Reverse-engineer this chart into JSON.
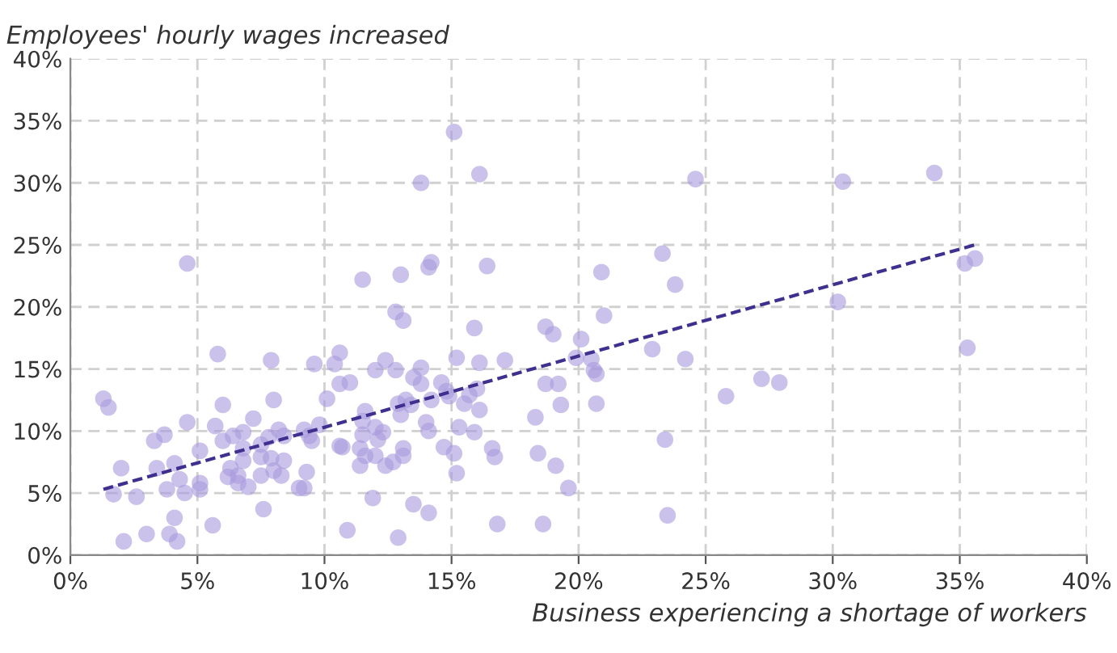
{
  "chart_data": {
    "type": "scatter",
    "xlabel": "Business experiencing a shortage of workers",
    "ylabel": "Employees' hourly wages increased",
    "xlim": [
      0,
      40
    ],
    "ylim": [
      0,
      40
    ],
    "xticks": [
      {
        "value": 0,
        "label": "0%"
      },
      {
        "value": 5,
        "label": "5%"
      },
      {
        "value": 10,
        "label": "10%"
      },
      {
        "value": 15,
        "label": "15%"
      },
      {
        "value": 20,
        "label": "20%"
      },
      {
        "value": 25,
        "label": "25%"
      },
      {
        "value": 30,
        "label": "30%"
      },
      {
        "value": 35,
        "label": "35%"
      },
      {
        "value": 40,
        "label": "40%"
      }
    ],
    "yticks": [
      {
        "value": 0,
        "label": "0%"
      },
      {
        "value": 5,
        "label": "5%"
      },
      {
        "value": 10,
        "label": "10%"
      },
      {
        "value": 15,
        "label": "15%"
      },
      {
        "value": 20,
        "label": "20%"
      },
      {
        "value": 25,
        "label": "25%"
      },
      {
        "value": 30,
        "label": "30%"
      },
      {
        "value": 35,
        "label": "35%"
      },
      {
        "value": 40,
        "label": "40%"
      }
    ],
    "grid": true,
    "marker": "circle",
    "series": [
      {
        "color": "#a999de",
        "x": [
          4.6,
          1.3,
          1.5,
          5.8,
          7.9,
          9.6,
          10.6,
          10.4,
          10.6,
          10.1,
          6.0,
          8.0,
          7.2,
          4.6,
          5.7,
          3.7,
          3.3,
          6.0,
          6.4,
          6.8,
          5.1,
          7.8,
          8.2,
          8.4,
          7.5,
          6.8,
          9.2,
          9.4,
          9.5,
          9.8,
          10.6,
          2.0,
          3.4,
          4.1,
          4.3,
          3.8,
          1.7,
          2.6,
          4.5,
          5.1,
          5.1,
          6.3,
          6.2,
          6.6,
          6.6,
          7.0,
          6.8,
          7.5,
          7.5,
          8.0,
          8.3,
          8.4,
          7.9,
          9.3,
          9.0,
          9.2,
          4.1,
          5.6,
          7.6,
          2.1,
          3.0,
          3.9,
          4.2,
          10.9,
          11.5,
          13.0,
          14.1,
          14.2,
          16.4,
          12.8,
          13.1,
          15.9,
          18.7,
          19.0,
          12.0,
          12.4,
          12.8,
          13.8,
          15.2,
          16.1,
          17.1,
          11.0,
          13.5,
          13.8,
          14.6,
          14.8,
          14.2,
          13.2,
          12.9,
          13.4,
          13.0,
          11.6,
          11.5,
          12.0,
          12.3,
          11.5,
          12.1,
          10.7,
          11.4,
          11.6,
          11.4,
          12.0,
          12.4,
          12.7,
          13.1,
          13.1,
          14.0,
          14.1,
          14.9,
          15.5,
          15.7,
          16.0,
          16.1,
          15.3,
          15.9,
          14.7,
          15.1,
          15.2,
          16.6,
          16.7,
          18.3,
          18.7,
          19.2,
          19.3,
          18.4,
          19.1,
          19.6,
          11.9,
          13.5,
          14.1,
          12.9,
          16.8,
          18.6,
          15.1,
          13.8,
          16.1,
          24.6,
          30.4,
          34.0,
          23.3,
          20.9,
          23.8,
          35.2,
          35.6,
          30.2,
          21.0,
          20.1,
          19.9,
          20.5,
          20.6,
          20.7,
          22.9,
          24.2,
          35.3,
          20.7,
          25.8,
          27.2,
          27.9,
          23.4,
          23.5
        ],
        "values": [
          23.5,
          12.6,
          11.9,
          16.2,
          15.7,
          15.4,
          16.3,
          15.4,
          13.8,
          12.6,
          12.1,
          12.5,
          11.0,
          10.7,
          10.4,
          9.7,
          9.2,
          9.2,
          9.6,
          9.9,
          8.4,
          9.5,
          10.1,
          9.6,
          8.9,
          8.6,
          10.1,
          9.6,
          9.2,
          10.5,
          8.8,
          7.0,
          7.0,
          7.4,
          6.1,
          5.3,
          4.9,
          4.7,
          5.0,
          5.8,
          5.3,
          7.0,
          6.3,
          6.4,
          5.8,
          5.5,
          7.6,
          7.9,
          6.4,
          6.8,
          6.4,
          7.6,
          7.8,
          6.7,
          5.4,
          5.4,
          3.0,
          2.4,
          3.7,
          1.1,
          1.7,
          1.7,
          1.1,
          2.0,
          22.2,
          22.6,
          23.2,
          23.6,
          23.3,
          19.6,
          18.9,
          18.3,
          18.4,
          17.8,
          14.9,
          15.7,
          14.9,
          15.1,
          15.9,
          15.5,
          15.7,
          13.9,
          14.3,
          13.8,
          13.9,
          13.2,
          12.5,
          12.5,
          12.2,
          12.1,
          11.3,
          11.6,
          10.8,
          10.3,
          9.9,
          9.7,
          9.3,
          8.7,
          8.6,
          8.0,
          7.2,
          8.0,
          7.2,
          7.5,
          8.0,
          8.6,
          10.7,
          10.0,
          12.8,
          12.2,
          12.9,
          13.4,
          11.7,
          10.3,
          9.9,
          8.7,
          8.2,
          6.6,
          8.6,
          7.9,
          11.1,
          13.8,
          13.8,
          12.1,
          8.2,
          7.2,
          5.4,
          4.6,
          4.1,
          3.4,
          1.4,
          2.5,
          2.5,
          34.1,
          30.0,
          30.7,
          30.3,
          30.1,
          30.8,
          24.3,
          22.8,
          21.8,
          23.5,
          23.9,
          20.4,
          19.3,
          17.4,
          15.9,
          15.8,
          14.9,
          14.6,
          16.6,
          15.8,
          16.7,
          12.2,
          12.8,
          14.2,
          13.9,
          9.3,
          3.2
        ]
      },
      {
        "type": "line",
        "color": "#3f2f8f",
        "line_style": "dashed",
        "marker": "none",
        "x": [
          1.3,
          35.6
        ],
        "values": [
          5.3,
          25.0
        ]
      }
    ]
  }
}
